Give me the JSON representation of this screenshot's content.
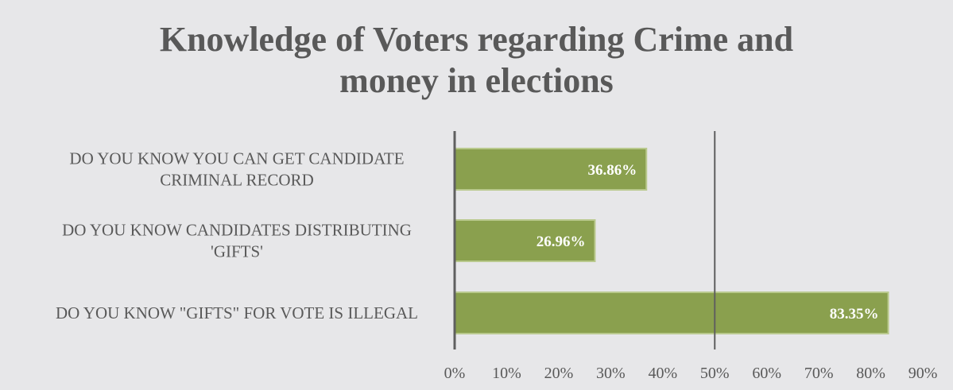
{
  "chart_data": {
    "type": "bar",
    "orientation": "horizontal",
    "title_lines": [
      "Knowledge of  Voters regarding Crime and",
      "money in elections"
    ],
    "categories": [
      [
        "DO YOU KNOW YOU CAN GET CANDIDATE",
        "CRIMINAL RECORD"
      ],
      [
        "DO YOU KNOW CANDIDATES DISTRIBUTING",
        "'GIFTS'"
      ],
      [
        "DO YOU KNOW \"GIFTS\" FOR VOTE IS ILLEGAL"
      ]
    ],
    "values": [
      36.86,
      26.96,
      83.35
    ],
    "data_labels": [
      "36.86%",
      "26.96%",
      "83.35%"
    ],
    "x_ticks": [
      "0%",
      "10%",
      "20%",
      "30%",
      "40%",
      "50%",
      "60%",
      "70%",
      "80%",
      "90%"
    ],
    "xlim": [
      0,
      90
    ],
    "reference_line": 50,
    "grid": false,
    "colors": {
      "bar": "#8aa04e",
      "bar_edge": "#b9c98d",
      "axis": "#5f5f5f",
      "text": "#595959",
      "background": "#e7e7e9",
      "label": "#ffffff"
    }
  }
}
